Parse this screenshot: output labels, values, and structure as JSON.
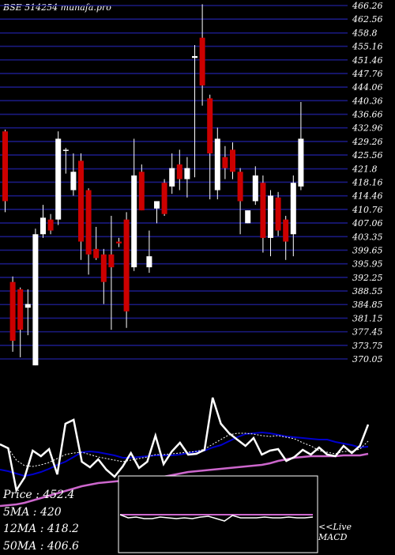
{
  "header": {
    "title": "BSE 514254  munafa.pro"
  },
  "stats": {
    "price": "Price     : 452.4",
    "ma5": "5MA  : 420",
    "ma12": "12MA : 418.2",
    "ma50": "50MA : 406.6"
  },
  "macd_label": {
    "line1": "<<Live",
    "line2": "MACD"
  },
  "colors": {
    "background": "#000000",
    "grid": "#1a1a80",
    "up_candle": "#ffffff",
    "down_candle": "#cc0000",
    "ma_fast": "#ffffff",
    "ma_mid": "#0000cc",
    "ma_slow": "#cc66cc"
  },
  "chart_data": [
    {
      "type": "candlestick",
      "title": "BSE 514254  munafa.pro",
      "y_ticks": [
        "466.26",
        "462.56",
        "458.8",
        "455.16",
        "451.46",
        "447.76",
        "444.06",
        "440.36",
        "436.66",
        "432.96",
        "429.26",
        "425.56",
        "421.8",
        "418.16",
        "414.46",
        "410.76",
        "407.06",
        "403.35",
        "399.65",
        "395.95",
        "392.25",
        "388.55",
        "384.85",
        "381.15",
        "377.45",
        "373.75",
        "370.05"
      ],
      "ylim": [
        368.3,
        466.6
      ],
      "grid": true,
      "candles": [
        {
          "o": 432.0,
          "h": 432.5,
          "l": 410.0,
          "c": 413.0
        },
        {
          "o": 391.0,
          "h": 392.5,
          "l": 372.0,
          "c": 375.0
        },
        {
          "o": 389.0,
          "h": 389.5,
          "l": 370.5,
          "c": 378.0
        },
        {
          "o": 384.0,
          "h": 389.0,
          "l": 376.5,
          "c": 385.0
        },
        {
          "o": 368.3,
          "h": 405.5,
          "l": 368.3,
          "c": 404.0
        },
        {
          "o": 404.0,
          "h": 412.0,
          "l": 403.0,
          "c": 408.5
        },
        {
          "o": 408.0,
          "h": 409.5,
          "l": 404.0,
          "c": 405.0
        },
        {
          "o": 408.0,
          "h": 432.0,
          "l": 406.5,
          "c": 430.0
        },
        {
          "o": 427.0,
          "h": 427.5,
          "l": 420.5,
          "c": 427.0
        },
        {
          "o": 416.0,
          "h": 426.0,
          "l": 414.5,
          "c": 421.0
        },
        {
          "o": 424.0,
          "h": 426.0,
          "l": 397.0,
          "c": 402.0
        },
        {
          "o": 416.0,
          "h": 416.5,
          "l": 393.0,
          "c": 398.5
        },
        {
          "o": 400.0,
          "h": 406.0,
          "l": 397.0,
          "c": 397.5
        },
        {
          "o": 398.5,
          "h": 400.0,
          "l": 385.0,
          "c": 391.0
        },
        {
          "o": 398.5,
          "h": 409.0,
          "l": 378.0,
          "c": 395.0
        },
        {
          "o": 402.0,
          "h": 403.0,
          "l": 400.5,
          "c": 401.5
        },
        {
          "o": 408.0,
          "h": 410.0,
          "l": 378.5,
          "c": 383.0
        },
        {
          "o": 395.0,
          "h": 430.0,
          "l": 394.0,
          "c": 420.0
        },
        {
          "o": 421.0,
          "h": 423.0,
          "l": 410.5,
          "c": 410.5
        },
        {
          "o": 395.0,
          "h": 405.0,
          "l": 393.5,
          "c": 398.0
        },
        {
          "o": 411.0,
          "h": 413.0,
          "l": 407.0,
          "c": 413.0
        },
        {
          "o": 418.0,
          "h": 419.0,
          "l": 409.0,
          "c": 409.5
        },
        {
          "o": 417.0,
          "h": 426.0,
          "l": 415.0,
          "c": 422.0
        },
        {
          "o": 423.0,
          "h": 427.0,
          "l": 416.0,
          "c": 419.0
        },
        {
          "o": 419.0,
          "h": 425.0,
          "l": 414.0,
          "c": 422.0
        },
        {
          "o": 452.0,
          "h": 455.5,
          "l": 419.5,
          "c": 452.5
        },
        {
          "o": 457.5,
          "h": 466.6,
          "l": 439.0,
          "c": 444.5
        },
        {
          "o": 441.0,
          "h": 442.0,
          "l": 413.5,
          "c": 426.0
        },
        {
          "o": 416.0,
          "h": 433.0,
          "l": 413.5,
          "c": 430.0
        },
        {
          "o": 425.0,
          "h": 428.0,
          "l": 419.0,
          "c": 422.0
        },
        {
          "o": 427.0,
          "h": 429.0,
          "l": 419.0,
          "c": 421.0
        },
        {
          "o": 421.0,
          "h": 422.0,
          "l": 404.0,
          "c": 413.0
        },
        {
          "o": 407.0,
          "h": 410.5,
          "l": 407.0,
          "c": 410.5
        },
        {
          "o": 413.0,
          "h": 422.5,
          "l": 412.0,
          "c": 420.0
        },
        {
          "o": 418.0,
          "h": 420.0,
          "l": 399.0,
          "c": 403.0
        },
        {
          "o": 403.0,
          "h": 416.0,
          "l": 398.0,
          "c": 414.5
        },
        {
          "o": 414.0,
          "h": 415.5,
          "l": 403.5,
          "c": 405.0
        },
        {
          "o": 408.0,
          "h": 409.0,
          "l": 397.0,
          "c": 402.0
        },
        {
          "o": 404.0,
          "h": 420.0,
          "l": 398.0,
          "c": 418.0
        },
        {
          "o": 417.0,
          "h": 440.0,
          "l": 416.0,
          "c": 430.0
        }
      ]
    },
    {
      "type": "line",
      "series": [
        {
          "key": "price",
          "values": [
            562,
            567,
            620,
            604,
            570,
            577,
            568,
            600,
            536,
            531,
            584,
            591,
            581,
            594,
            603,
            590,
            573,
            592,
            584,
            551,
            587,
            571,
            560,
            575,
            574,
            569,
            503,
            536,
            548,
            556,
            564,
            554,
            575,
            570,
            568,
            583,
            578,
            569,
            575,
            566,
            575,
            577,
            564,
            573,
            564,
            537
          ]
        },
        {
          "key": "ma_fast",
          "values": [
            562,
            567,
            582,
            589,
            590,
            588,
            585,
            580,
            575,
            573,
            572,
            575,
            578,
            580,
            582,
            584,
            582,
            580,
            578,
            575,
            575,
            574,
            573,
            572,
            571,
            568,
            562,
            556,
            550,
            548,
            548,
            549,
            551,
            552,
            551,
            553,
            555,
            560,
            564,
            570,
            572,
            574,
            571,
            571,
            568,
            558
          ]
        },
        {
          "key": "ma_mid",
          "values": [
            594,
            596,
            599,
            602,
            600,
            597,
            593,
            588,
            584,
            578,
            572,
            571,
            572,
            574,
            576,
            579,
            579,
            578,
            577,
            576,
            576,
            576,
            575,
            573,
            571,
            570,
            566,
            563,
            558,
            553,
            549,
            548,
            547,
            548,
            550,
            552,
            553,
            554,
            555,
            556,
            556,
            559,
            561,
            563,
            566,
            565
          ]
        },
        {
          "key": "ma_slow",
          "values": [
            640,
            639,
            638,
            636,
            633,
            630,
            627,
            624,
            621,
            618,
            615,
            613,
            611,
            610,
            609,
            608,
            607,
            606,
            605,
            604,
            603,
            601,
            599,
            597,
            596,
            595,
            594,
            593,
            592,
            591,
            590,
            589,
            588,
            586,
            583,
            581,
            579,
            578,
            577,
            577,
            577,
            577,
            576,
            576,
            576,
            574
          ]
        }
      ]
    },
    {
      "type": "line",
      "series": [
        {
          "key": "macd",
          "values": [
            651,
            655,
            654,
            656,
            656,
            654,
            655,
            656,
            655,
            656,
            654,
            653,
            656,
            659,
            652,
            655,
            655,
            655,
            654,
            655,
            655,
            654,
            655,
            655,
            654
          ]
        },
        {
          "key": "signal",
          "values": [
            651,
            651,
            651,
            651,
            651,
            651,
            651,
            651,
            651,
            651,
            651,
            651,
            651,
            651,
            651,
            651,
            651,
            651,
            651,
            651,
            651,
            651,
            651,
            651,
            651
          ]
        }
      ]
    }
  ]
}
